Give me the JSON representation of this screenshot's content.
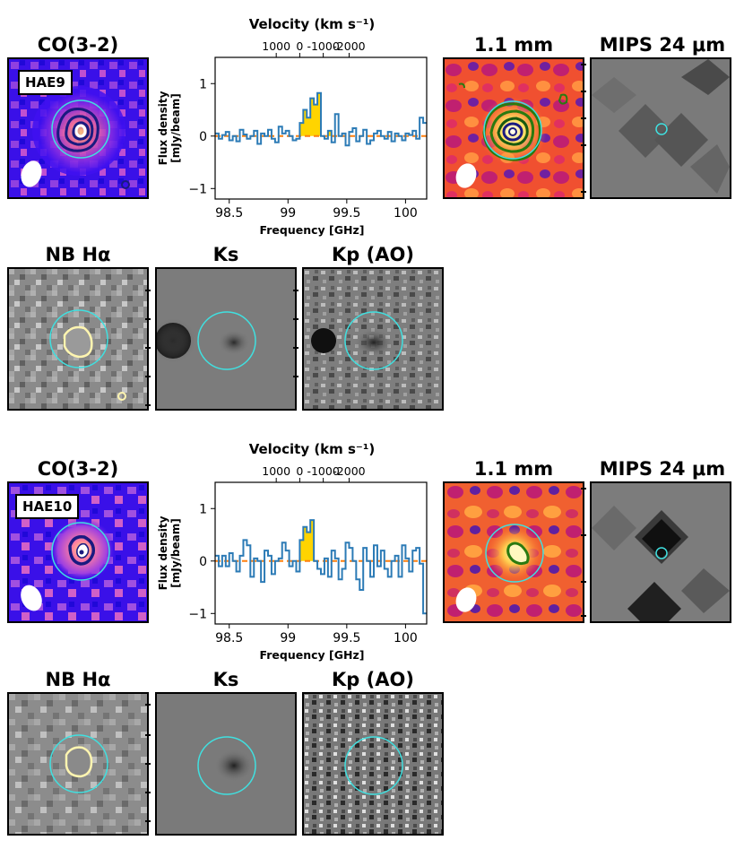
{
  "colors": {
    "aperture": "#40e0e0",
    "spectrum_line": "#2c7bb6",
    "line_fill": "#ffd400",
    "baseline": "#ff7f0e",
    "co_contour": "#1a1a80",
    "mm_contour": "#2a7a10",
    "ha_contour": "#fff5b0"
  },
  "sources": [
    {
      "id": "HAE9",
      "label": "HAE9",
      "panels": {
        "co": "CO(3-2)",
        "mm": "1.1 mm",
        "mips": "MIPS 24 μm",
        "nb": "NB Hα",
        "ks": "Ks",
        "kp": "Kp (AO)"
      },
      "chart_data": {
        "type": "line",
        "title": "Velocity (km s⁻¹)",
        "xlabel": "Frequency [GHz]",
        "ylabel_line1": "Flux density",
        "ylabel_line2": "[mJy/beam]",
        "xlim": [
          98.38,
          100.18
        ],
        "ylim": [
          -1.2,
          1.5
        ],
        "x_ticks": [
          "98.5",
          "99",
          "99.5",
          "100"
        ],
        "y_ticks": [
          "1",
          "0",
          "−1"
        ],
        "top_ticks": [
          "1000",
          "0",
          "-1000",
          "-2000"
        ],
        "line_range": [
          99.1,
          99.37
        ],
        "step": 0.03,
        "values": [
          0.05,
          -0.05,
          0.02,
          0.08,
          -0.08,
          0.0,
          -0.1,
          0.12,
          0.03,
          -0.05,
          0.0,
          0.1,
          -0.15,
          0.05,
          0.0,
          0.12,
          -0.05,
          -0.12,
          0.18,
          0.05,
          0.1,
          0.0,
          -0.08,
          -0.05,
          0.25,
          0.5,
          0.35,
          0.72,
          0.6,
          0.82,
          0.0,
          -0.05,
          0.1,
          -0.12,
          0.42,
          0.0,
          0.05,
          -0.18,
          0.08,
          0.15,
          -0.1,
          0.0,
          0.12,
          -0.15,
          -0.08,
          0.05,
          0.1,
          0.0,
          -0.05,
          0.08,
          -0.1,
          0.05,
          0.0,
          -0.08,
          0.05,
          0.02,
          0.1,
          -0.05,
          0.35,
          0.25
        ]
      }
    },
    {
      "id": "HAE10",
      "label": "HAE10",
      "panels": {
        "co": "CO(3-2)",
        "mm": "1.1 mm",
        "mips": "MIPS 24 μm",
        "nb": "NB Hα",
        "ks": "Ks",
        "kp": "Kp (AO)"
      },
      "chart_data": {
        "type": "line",
        "title": "Velocity (km s⁻¹)",
        "xlabel": "Frequency [GHz]",
        "ylabel_line1": "Flux density",
        "ylabel_line2": "[mJy/beam]",
        "xlim": [
          98.38,
          100.18
        ],
        "ylim": [
          -1.2,
          1.5
        ],
        "x_ticks": [
          "98.5",
          "99",
          "99.5",
          "100"
        ],
        "y_ticks": [
          "1",
          "0",
          "−1"
        ],
        "top_ticks": [
          "1000",
          "0",
          "-1000",
          "-2000"
        ],
        "line_range": [
          99.1,
          99.25
        ],
        "step": 0.03,
        "values": [
          0.1,
          -0.1,
          0.1,
          -0.1,
          0.15,
          0.0,
          -0.2,
          0.1,
          0.4,
          0.3,
          -0.3,
          0.05,
          0.0,
          -0.4,
          0.2,
          0.1,
          -0.25,
          0.0,
          0.05,
          0.35,
          0.2,
          -0.1,
          0.0,
          -0.2,
          0.4,
          0.65,
          0.55,
          0.78,
          0.0,
          -0.15,
          -0.25,
          0.05,
          -0.3,
          0.2,
          0.05,
          -0.35,
          -0.15,
          0.35,
          0.25,
          0.0,
          -0.35,
          -0.55,
          0.25,
          0.0,
          -0.3,
          0.3,
          -0.1,
          0.2,
          -0.15,
          -0.3,
          0.0,
          0.1,
          -0.3,
          0.3,
          0.05,
          -0.2,
          0.2,
          0.25,
          -0.05,
          -1.0
        ]
      }
    }
  ]
}
